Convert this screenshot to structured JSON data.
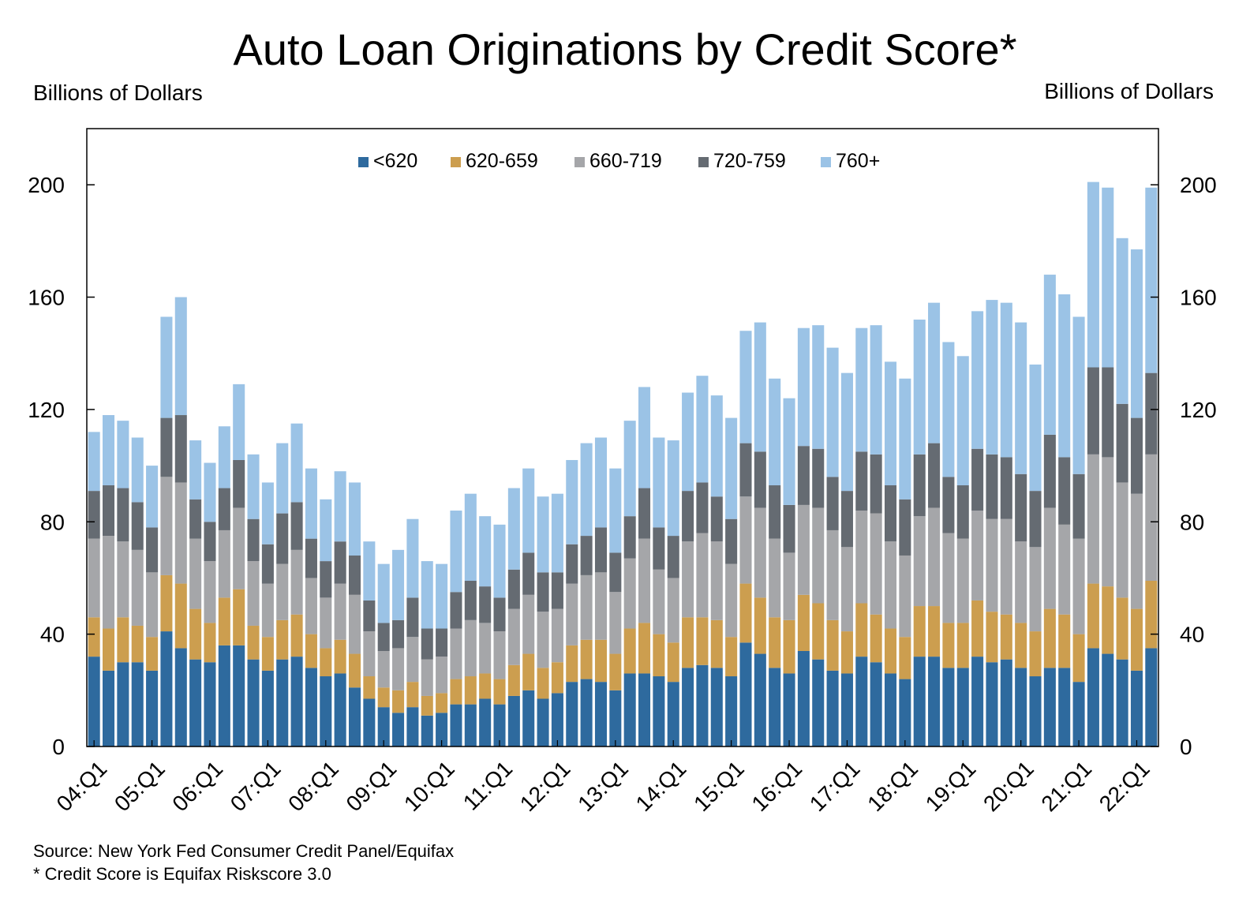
{
  "chart_data": {
    "type": "bar",
    "stacked": true,
    "title": "Auto Loan Originations by Credit Score*",
    "ylabel_left": "Billions of Dollars",
    "ylabel_right": "Billions of Dollars",
    "ylim": [
      0,
      220
    ],
    "yticks": [
      0,
      40,
      80,
      120,
      160,
      200
    ],
    "xtick_labels": [
      "04:Q1",
      "05:Q1",
      "06:Q1",
      "07:Q1",
      "08:Q1",
      "09:Q1",
      "10:Q1",
      "11:Q1",
      "12:Q1",
      "13:Q1",
      "14:Q1",
      "15:Q1",
      "16:Q1",
      "17:Q1",
      "18:Q1",
      "19:Q1",
      "20:Q1",
      "21:Q1",
      "22:Q1"
    ],
    "categories": [
      "04:Q1",
      "04:Q2",
      "04:Q3",
      "04:Q4",
      "05:Q1",
      "05:Q2",
      "05:Q3",
      "05:Q4",
      "06:Q1",
      "06:Q2",
      "06:Q3",
      "06:Q4",
      "07:Q1",
      "07:Q2",
      "07:Q3",
      "07:Q4",
      "08:Q1",
      "08:Q2",
      "08:Q3",
      "08:Q4",
      "09:Q1",
      "09:Q2",
      "09:Q3",
      "09:Q4",
      "10:Q1",
      "10:Q2",
      "10:Q3",
      "10:Q4",
      "11:Q1",
      "11:Q2",
      "11:Q3",
      "11:Q4",
      "12:Q1",
      "12:Q2",
      "12:Q3",
      "12:Q4",
      "13:Q1",
      "13:Q2",
      "13:Q3",
      "13:Q4",
      "14:Q1",
      "14:Q2",
      "14:Q3",
      "14:Q4",
      "15:Q1",
      "15:Q2",
      "15:Q3",
      "15:Q4",
      "16:Q1",
      "16:Q2",
      "16:Q3",
      "16:Q4",
      "17:Q1",
      "17:Q2",
      "17:Q3",
      "17:Q4",
      "18:Q1",
      "18:Q2",
      "18:Q3",
      "18:Q4",
      "19:Q1",
      "19:Q2",
      "19:Q3",
      "19:Q4",
      "20:Q1",
      "20:Q2",
      "20:Q3",
      "20:Q4",
      "21:Q1",
      "21:Q2",
      "21:Q3",
      "21:Q4",
      "22:Q1",
      "22:Q2"
    ],
    "series": [
      {
        "name": "<620",
        "color": "#2e6a9e",
        "values": [
          32,
          27,
          30,
          30,
          27,
          41,
          35,
          31,
          30,
          36,
          36,
          31,
          27,
          31,
          32,
          28,
          25,
          26,
          21,
          17,
          14,
          12,
          14,
          11,
          12,
          15,
          15,
          17,
          15,
          18,
          20,
          17,
          19,
          23,
          24,
          23,
          20,
          26,
          26,
          25,
          23,
          28,
          29,
          28,
          25,
          37,
          33,
          28,
          26,
          34,
          31,
          27,
          26,
          32,
          30,
          26,
          24,
          32,
          32,
          28,
          28,
          32,
          30,
          31,
          28,
          25,
          28,
          28,
          23,
          35,
          33,
          31,
          27,
          35
        ]
      },
      {
        "name": "620-659",
        "color": "#cc9e4f",
        "values": [
          14,
          15,
          16,
          13,
          12,
          20,
          23,
          18,
          14,
          17,
          20,
          12,
          12,
          14,
          15,
          12,
          10,
          12,
          12,
          8,
          7,
          8,
          9,
          7,
          7,
          9,
          10,
          9,
          9,
          11,
          13,
          11,
          11,
          13,
          14,
          15,
          13,
          16,
          18,
          15,
          14,
          18,
          17,
          17,
          14,
          21,
          20,
          18,
          19,
          20,
          20,
          18,
          15,
          19,
          17,
          16,
          15,
          18,
          18,
          16,
          16,
          20,
          18,
          16,
          16,
          16,
          21,
          19,
          17,
          23,
          24,
          22,
          22,
          24
        ]
      },
      {
        "name": "660-719",
        "color": "#a5a6a9",
        "values": [
          28,
          33,
          27,
          27,
          23,
          35,
          36,
          25,
          22,
          24,
          29,
          23,
          19,
          20,
          23,
          20,
          18,
          20,
          21,
          16,
          13,
          15,
          16,
          13,
          13,
          18,
          20,
          18,
          17,
          20,
          21,
          20,
          19,
          22,
          23,
          24,
          22,
          25,
          30,
          23,
          23,
          27,
          30,
          28,
          26,
          31,
          32,
          28,
          24,
          32,
          34,
          32,
          30,
          33,
          36,
          31,
          29,
          32,
          35,
          32,
          30,
          32,
          33,
          34,
          29,
          30,
          36,
          32,
          34,
          46,
          46,
          41,
          41,
          45
        ]
      },
      {
        "name": "720-759",
        "color": "#656b72",
        "values": [
          17,
          18,
          19,
          17,
          16,
          21,
          24,
          14,
          14,
          15,
          17,
          15,
          14,
          18,
          17,
          14,
          13,
          15,
          14,
          11,
          10,
          10,
          14,
          11,
          10,
          13,
          14,
          13,
          12,
          14,
          15,
          14,
          13,
          14,
          14,
          16,
          14,
          15,
          18,
          15,
          15,
          18,
          18,
          16,
          16,
          19,
          20,
          19,
          17,
          21,
          21,
          19,
          20,
          21,
          21,
          20,
          20,
          22,
          23,
          20,
          19,
          22,
          23,
          22,
          24,
          20,
          26,
          24,
          23,
          31,
          32,
          28,
          27,
          29
        ]
      },
      {
        "name": "760+",
        "color": "#9bc3e6",
        "values": [
          21,
          25,
          24,
          23,
          22,
          36,
          42,
          21,
          21,
          22,
          27,
          23,
          22,
          25,
          28,
          25,
          22,
          25,
          26,
          21,
          21,
          25,
          28,
          24,
          23,
          29,
          31,
          25,
          26,
          29,
          30,
          27,
          28,
          30,
          33,
          32,
          30,
          34,
          36,
          32,
          34,
          35,
          38,
          36,
          36,
          40,
          46,
          38,
          38,
          42,
          44,
          46,
          42,
          44,
          46,
          44,
          43,
          48,
          50,
          48,
          46,
          49,
          55,
          55,
          54,
          45,
          57,
          58,
          56,
          66,
          64,
          59,
          60,
          66
        ]
      }
    ],
    "legend": {
      "position": "top-center"
    },
    "source": "Source: New York Fed Consumer Credit Panel/Equifax",
    "note": "* Credit Score is Equifax Riskscore 3.0"
  }
}
